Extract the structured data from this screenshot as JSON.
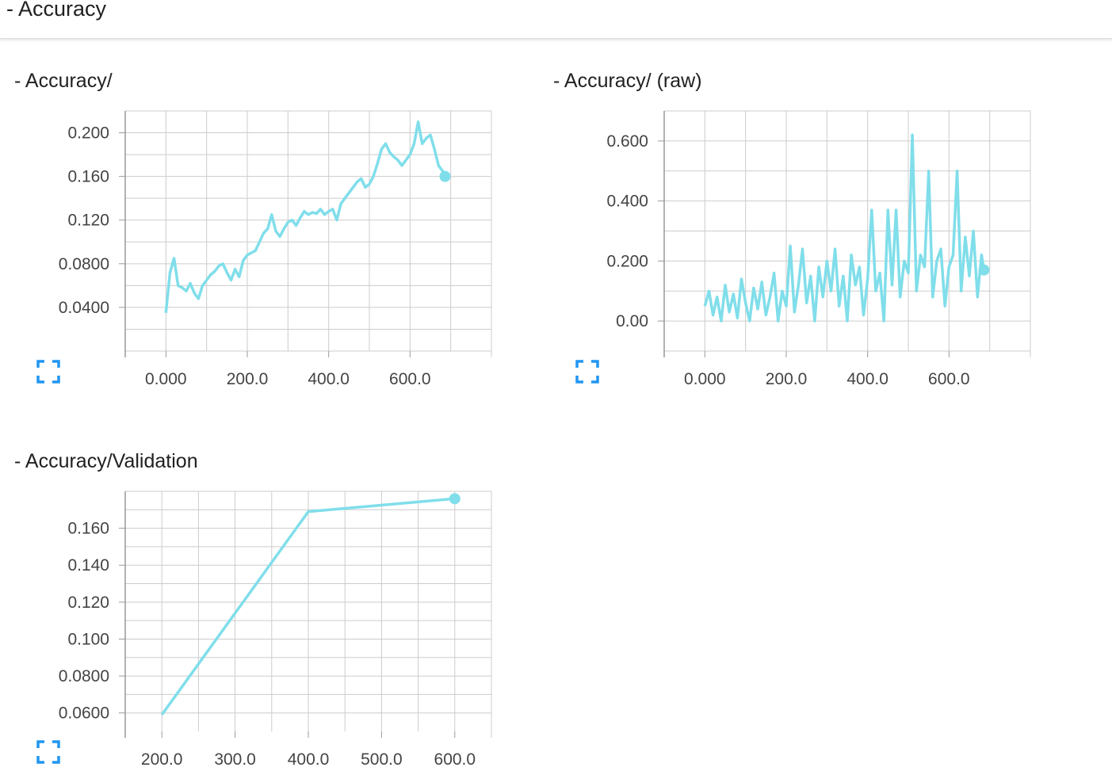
{
  "section": {
    "title": "- Accuracy"
  },
  "cards": [
    {
      "title": "- Accuracy/"
    },
    {
      "title": "- Accuracy/ (raw)"
    },
    {
      "title": "- Accuracy/Validation"
    }
  ],
  "icons": {
    "expand": "expand-icon"
  },
  "colors": {
    "line": "#80deea",
    "grid": "#cccccc",
    "axis": "#999999"
  },
  "chart_data": [
    {
      "type": "line",
      "title": "- Accuracy/",
      "xlabel": "",
      "ylabel": "",
      "xlim": [
        -100,
        800
      ],
      "ylim": [
        0.0,
        0.22
      ],
      "x_ticks": [
        "0.000",
        "200.0",
        "400.0",
        "600.0"
      ],
      "y_ticks": [
        "0.200",
        "0.160",
        "0.120",
        "0.0800",
        "0.0400"
      ],
      "grid": true,
      "series": [
        {
          "x": [
            0,
            10,
            20,
            30,
            40,
            50,
            60,
            70,
            80,
            90,
            100,
            110,
            120,
            130,
            140,
            150,
            160,
            170,
            180,
            190,
            200,
            210,
            220,
            230,
            240,
            250,
            260,
            270,
            280,
            290,
            300,
            310,
            320,
            330,
            340,
            350,
            360,
            370,
            380,
            390,
            400,
            410,
            420,
            430,
            440,
            450,
            460,
            470,
            480,
            490,
            500,
            510,
            520,
            530,
            540,
            550,
            560,
            570,
            580,
            590,
            600,
            610,
            620,
            630,
            640,
            650,
            660,
            670,
            680,
            686
          ],
          "y": [
            0.035,
            0.072,
            0.085,
            0.06,
            0.058,
            0.055,
            0.062,
            0.053,
            0.048,
            0.06,
            0.065,
            0.07,
            0.073,
            0.078,
            0.08,
            0.072,
            0.065,
            0.075,
            0.068,
            0.083,
            0.088,
            0.09,
            0.092,
            0.1,
            0.108,
            0.112,
            0.125,
            0.11,
            0.105,
            0.112,
            0.118,
            0.12,
            0.115,
            0.122,
            0.128,
            0.125,
            0.127,
            0.126,
            0.13,
            0.125,
            0.128,
            0.13,
            0.12,
            0.135,
            0.14,
            0.145,
            0.15,
            0.155,
            0.158,
            0.15,
            0.153,
            0.16,
            0.172,
            0.185,
            0.19,
            0.182,
            0.178,
            0.175,
            0.17,
            0.175,
            0.18,
            0.19,
            0.21,
            0.19,
            0.195,
            0.198,
            0.185,
            0.17,
            0.165,
            0.16
          ]
        }
      ]
    },
    {
      "type": "line",
      "title": "- Accuracy/ (raw)",
      "xlabel": "",
      "ylabel": "",
      "xlim": [
        -100,
        800
      ],
      "ylim": [
        -0.1,
        0.7
      ],
      "x_ticks": [
        "0.000",
        "200.0",
        "400.0",
        "600.0"
      ],
      "y_ticks": [
        "0.600",
        "0.400",
        "0.200",
        "0.00"
      ],
      "grid": true,
      "series": [
        {
          "x": [
            0,
            10,
            20,
            30,
            40,
            50,
            60,
            70,
            80,
            90,
            100,
            110,
            120,
            130,
            140,
            150,
            160,
            170,
            180,
            190,
            200,
            210,
            220,
            230,
            240,
            250,
            260,
            270,
            280,
            290,
            300,
            310,
            320,
            330,
            340,
            350,
            360,
            370,
            380,
            390,
            400,
            410,
            420,
            430,
            440,
            450,
            460,
            470,
            480,
            490,
            500,
            510,
            520,
            530,
            540,
            550,
            560,
            570,
            580,
            590,
            600,
            610,
            620,
            630,
            640,
            650,
            660,
            670,
            680,
            686
          ],
          "y": [
            0.05,
            0.1,
            0.02,
            0.08,
            0.0,
            0.12,
            0.03,
            0.09,
            0.01,
            0.14,
            0.06,
            0.0,
            0.11,
            0.04,
            0.13,
            0.02,
            0.08,
            0.16,
            0.0,
            0.1,
            0.05,
            0.25,
            0.03,
            0.12,
            0.24,
            0.06,
            0.15,
            0.0,
            0.18,
            0.08,
            0.2,
            0.1,
            0.24,
            0.05,
            0.15,
            0.0,
            0.22,
            0.12,
            0.18,
            0.02,
            0.14,
            0.37,
            0.1,
            0.16,
            0.0,
            0.37,
            0.12,
            0.37,
            0.08,
            0.2,
            0.16,
            0.62,
            0.1,
            0.22,
            0.18,
            0.5,
            0.08,
            0.2,
            0.24,
            0.05,
            0.18,
            0.22,
            0.5,
            0.1,
            0.28,
            0.15,
            0.3,
            0.08,
            0.22,
            0.17
          ]
        }
      ]
    },
    {
      "type": "line",
      "title": "- Accuracy/Validation",
      "xlabel": "",
      "ylabel": "",
      "xlim": [
        150,
        650
      ],
      "ylim": [
        0.05,
        0.18
      ],
      "x_ticks": [
        "200.0",
        "300.0",
        "400.0",
        "500.0",
        "600.0"
      ],
      "y_ticks": [
        "0.160",
        "0.140",
        "0.120",
        "0.100",
        "0.0800",
        "0.0600"
      ],
      "grid": true,
      "series": [
        {
          "x": [
            200,
            400,
            600
          ],
          "y": [
            0.059,
            0.169,
            0.176
          ]
        }
      ]
    }
  ]
}
